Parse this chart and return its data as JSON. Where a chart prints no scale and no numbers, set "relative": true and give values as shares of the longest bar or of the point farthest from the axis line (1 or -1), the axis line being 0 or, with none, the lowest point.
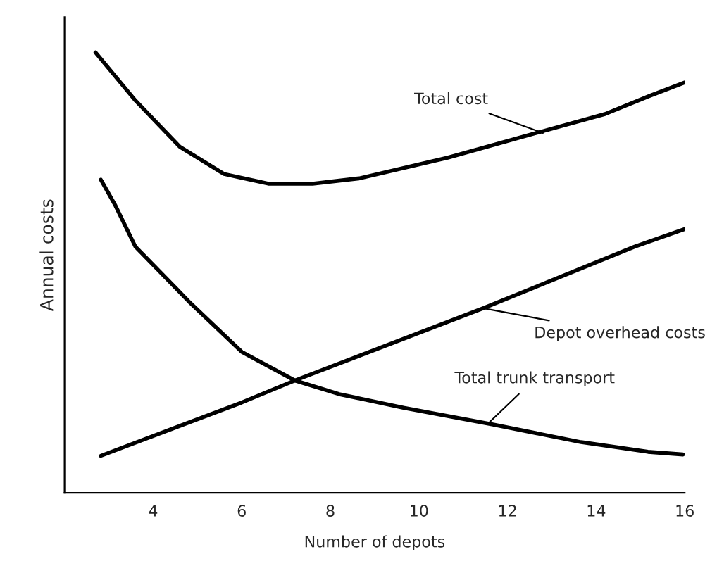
{
  "chart_data": {
    "type": "line",
    "relative": true,
    "xlabel": "Number of depots",
    "ylabel": "Annual costs",
    "xlim": [
      2,
      16
    ],
    "xticks": [
      4,
      6,
      8,
      10,
      12,
      14,
      16
    ],
    "grid": false,
    "legend": false,
    "marker": "none",
    "line_style": "solid",
    "series": [
      {
        "color": "#000000",
        "x": [
          2.7,
          3.6,
          4.6,
          5.6,
          6.6,
          7.6,
          8.65,
          10.65,
          12.65,
          14.2,
          15.2,
          16
        ],
        "values": [
          1.0,
          0.891,
          0.786,
          0.724,
          0.702,
          0.702,
          0.714,
          0.761,
          0.817,
          0.86,
          0.901,
          0.932
        ]
      },
      {
        "color": "#000000",
        "x": [
          2.82,
          3.15,
          3.6,
          4.8,
          6.0,
          7.2,
          8.2,
          9.65,
          11.67,
          13.66,
          15.17,
          15.96
        ],
        "values": [
          0.711,
          0.652,
          0.559,
          0.435,
          0.32,
          0.255,
          0.224,
          0.193,
          0.155,
          0.115,
          0.093,
          0.087
        ]
      },
      {
        "color": "#000000",
        "x": [
          2.82,
          6.0,
          7.2,
          11.45,
          14.87,
          16
        ],
        "values": [
          0.084,
          0.205,
          0.255,
          0.419,
          0.559,
          0.599
        ]
      }
    ],
    "annotations": [
      {
        "text": "Total cost",
        "x": 12.8,
        "y": 0.817
      },
      {
        "text": "Depot overhead costs",
        "x": 11.45,
        "y": 0.419
      },
      {
        "text": "Total trunk transport",
        "x": 11.6,
        "y": 0.161
      }
    ]
  }
}
